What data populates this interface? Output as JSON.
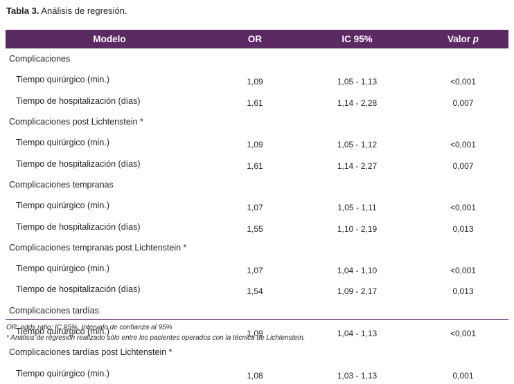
{
  "caption": {
    "label": "Tabla 3.",
    "text": " Análisis de regresión."
  },
  "table": {
    "headers": {
      "model": "Modelo",
      "or": "OR",
      "ic": "IC 95%",
      "p_prefix": "Valor ",
      "p_italic": "p"
    },
    "rows": [
      {
        "kind": "group",
        "label": "Complicaciones",
        "or": "",
        "ic": "",
        "p": ""
      },
      {
        "kind": "sub",
        "label": "Tiempo quirúrgico (min.)",
        "or": "1,09",
        "ic": "1,05 - 1,13",
        "p": "<0,001"
      },
      {
        "kind": "sub",
        "label": "Tiempo de hospitalización (días)",
        "or": "1,61",
        "ic": "1,14 - 2,28",
        "p": "0,007"
      },
      {
        "kind": "group",
        "label": "Complicaciones post Lichtenstein *",
        "or": "",
        "ic": "",
        "p": ""
      },
      {
        "kind": "sub",
        "label": "Tiempo quirúrgico (min.)",
        "or": "1,09",
        "ic": "1,05 - 1,12",
        "p": "<0,001"
      },
      {
        "kind": "sub",
        "label": "Tiempo de hospitalización (días)",
        "or": "1,61",
        "ic": "1,14 - 2,27",
        "p": "0,007"
      },
      {
        "kind": "group",
        "label": "Complicaciones tempranas",
        "or": "",
        "ic": "",
        "p": ""
      },
      {
        "kind": "sub",
        "label": "Tiempo quirúrgico (min.)",
        "or": "1,07",
        "ic": "1,05 - 1,11",
        "p": "<0,001"
      },
      {
        "kind": "sub",
        "label": "Tiempo de hospitalización (días)",
        "or": "1,55",
        "ic": "1,10 - 2,19",
        "p": "0,013"
      },
      {
        "kind": "group",
        "label": "Complicaciones tempranas post Lichtenstein *",
        "or": "",
        "ic": "",
        "p": ""
      },
      {
        "kind": "sub",
        "label": "Tiempo quirúrgico (min.)",
        "or": "1,07",
        "ic": "1,04 - 1,10",
        "p": "<0,001"
      },
      {
        "kind": "sub",
        "label": "Tiempo de hospitalización (días)",
        "or": "1,54",
        "ic": "1,09 - 2,17",
        "p": "0,013"
      },
      {
        "kind": "group",
        "label": "Complicaciones tardías",
        "or": "",
        "ic": "",
        "p": ""
      },
      {
        "kind": "sub",
        "label": "Tiempo quirúrgico (min.)",
        "or": "1,09",
        "ic": "1,04 - 1,13",
        "p": "<0,001"
      },
      {
        "kind": "group",
        "label": "Complicaciones tardías post Lichtenstein *",
        "or": "",
        "ic": "",
        "p": ""
      },
      {
        "kind": "sub",
        "label": "Tiempo quirúrgico (min.)",
        "or": "1,08",
        "ic": "1,03 - 1,13",
        "p": "0,001"
      }
    ]
  },
  "footnotes": {
    "line1": "OR: odds ratio; IC 95%, Intervalo de confianza al 95%",
    "line2": "* Análisis de regresión realizado sólo entre los pacientes operados con la técnica de Lichtenstein."
  },
  "colors": {
    "header_bg": "#5b2a63",
    "header_text": "#ffffff",
    "body_text": "#231f20"
  }
}
